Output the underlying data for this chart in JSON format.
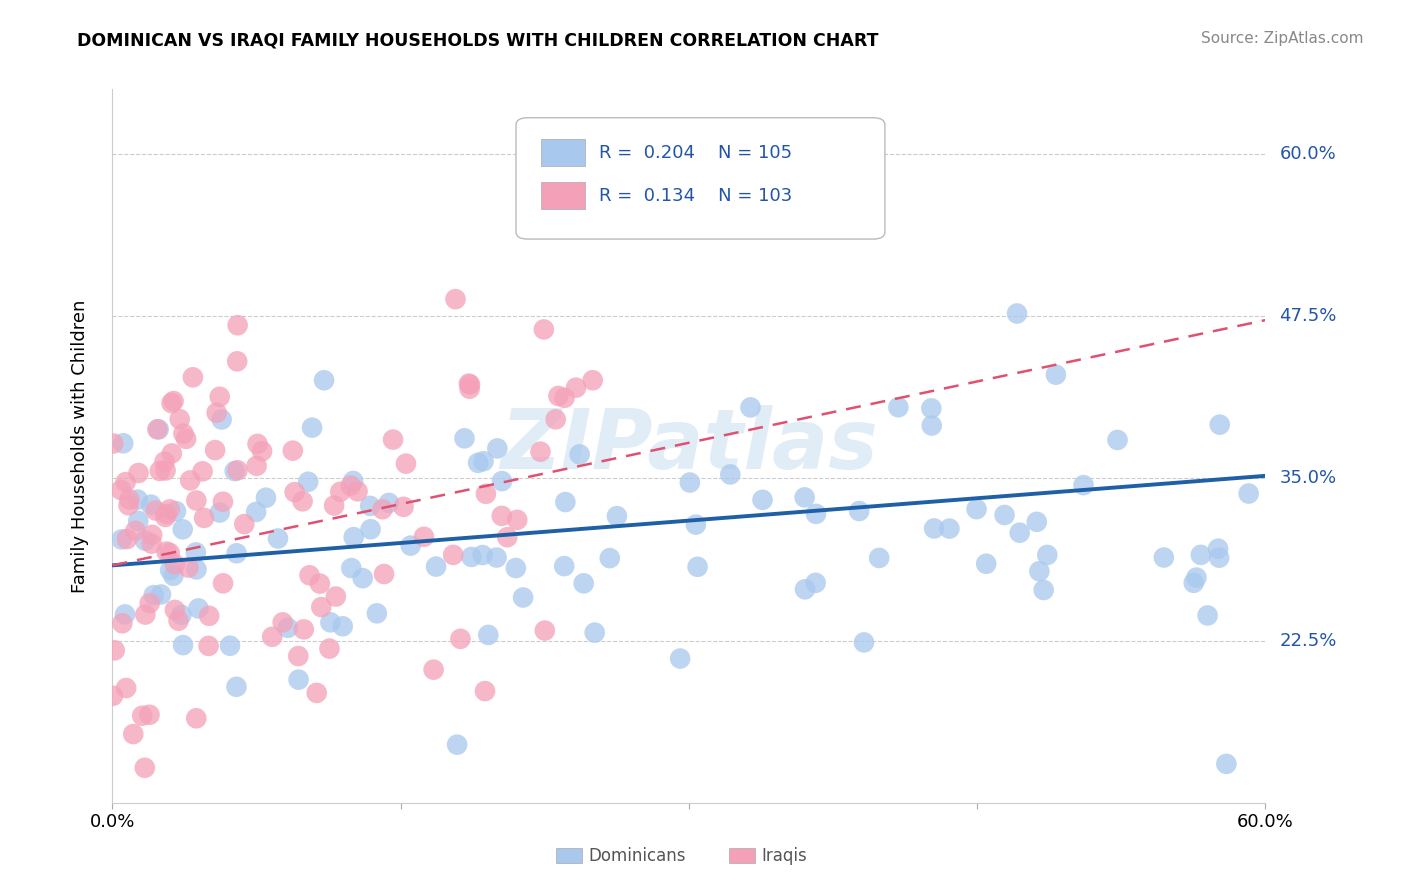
{
  "title": "DOMINICAN VS IRAQI FAMILY HOUSEHOLDS WITH CHILDREN CORRELATION CHART",
  "source": "Source: ZipAtlas.com",
  "ylabel": "Family Households with Children",
  "yticks": [
    "22.5%",
    "35.0%",
    "47.5%",
    "60.0%"
  ],
  "ytick_vals": [
    0.225,
    0.35,
    0.475,
    0.6
  ],
  "xlim": [
    0.0,
    0.6
  ],
  "ylim": [
    0.1,
    0.65
  ],
  "legend_r1": "0.204",
  "legend_n1": "105",
  "legend_r2": "0.134",
  "legend_n2": "103",
  "color_dominican": "#a8c8ed",
  "color_iraqi": "#f4a0b8",
  "color_dominican_line": "#1f5fa6",
  "color_iraqi_line": "#e05070",
  "watermark": "ZIPatlas"
}
